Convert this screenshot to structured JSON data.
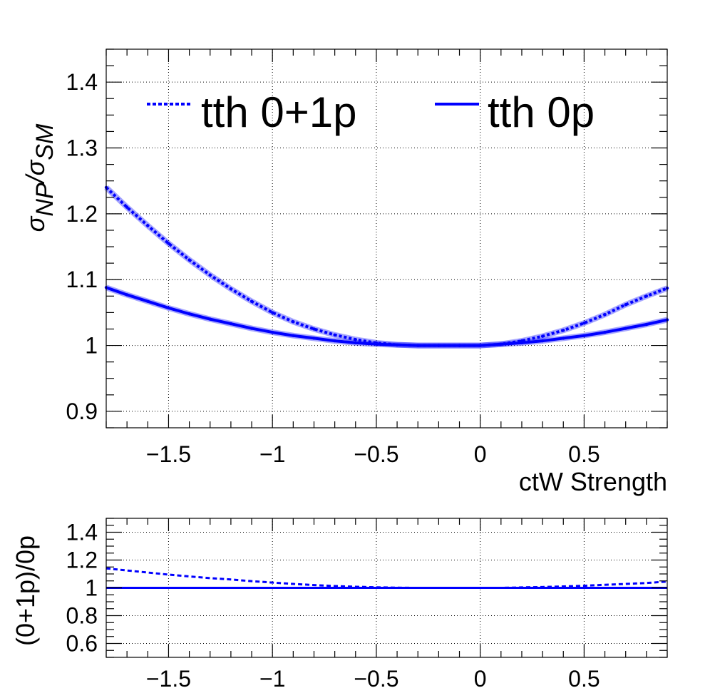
{
  "chart_data": [
    {
      "type": "line",
      "panel": "main",
      "xlabel": "ctW Strength",
      "ylabel_main": "σ",
      "ylabel_sub1": "NP",
      "ylabel_mid": "/σ",
      "ylabel_sub2": "SM",
      "xlim": [
        -1.8,
        0.9
      ],
      "ylim": [
        0.875,
        1.45
      ],
      "xticks": [
        -1.5,
        -1,
        -0.5,
        0,
        0.5
      ],
      "xtick_labels": [
        "−1.5",
        "−1",
        "−0.5",
        "0",
        "0.5"
      ],
      "yticks": [
        0.9,
        1.0,
        1.1,
        1.2,
        1.3,
        1.4
      ],
      "ytick_labels": [
        "0.9",
        "1",
        "1.1",
        "1.2",
        "1.3",
        "1.4"
      ],
      "grid": true,
      "legend_position": "top",
      "color": "#0000ff",
      "x": [
        -1.8,
        -1.7,
        -1.6,
        -1.5,
        -1.4,
        -1.3,
        -1.2,
        -1.1,
        -1.0,
        -0.9,
        -0.8,
        -0.7,
        -0.6,
        -0.5,
        -0.4,
        -0.3,
        -0.2,
        -0.1,
        0.0,
        0.1,
        0.2,
        0.3,
        0.4,
        0.5,
        0.6,
        0.7,
        0.8,
        0.9
      ],
      "series": [
        {
          "name": "tth 0+1p",
          "style": "dashed",
          "values": [
            1.24,
            1.21,
            1.182,
            1.155,
            1.13,
            1.107,
            1.086,
            1.067,
            1.05,
            1.036,
            1.025,
            1.016,
            1.009,
            1.004,
            1.001,
            1.0,
            1.0,
            1.0,
            1.0,
            1.002,
            1.007,
            1.014,
            1.023,
            1.034,
            1.047,
            1.062,
            1.075,
            1.087
          ]
        },
        {
          "name": "tth 0p",
          "style": "solid",
          "values": [
            1.088,
            1.077,
            1.067,
            1.057,
            1.048,
            1.04,
            1.033,
            1.026,
            1.02,
            1.015,
            1.011,
            1.007,
            1.004,
            1.002,
            1.001,
            1.0,
            1.0,
            1.0,
            1.0,
            1.002,
            1.004,
            1.007,
            1.011,
            1.015,
            1.02,
            1.026,
            1.032,
            1.039
          ]
        }
      ]
    },
    {
      "type": "line",
      "panel": "ratio",
      "ylabel": "(0+1p)/0p",
      "xlim": [
        -1.8,
        0.9
      ],
      "ylim": [
        0.5,
        1.5
      ],
      "xticks": [
        -1.5,
        -1,
        -0.5,
        0,
        0.5
      ],
      "xtick_labels": [
        "−1.5",
        "−1",
        "−0.5",
        "0",
        "0.5"
      ],
      "yticks": [
        0.6,
        0.8,
        1.0,
        1.2,
        1.4
      ],
      "ytick_labels": [
        "0.6",
        "0.8",
        "1",
        "1.2",
        "1.4"
      ],
      "grid": true,
      "color": "#0000ff",
      "x": [
        -1.8,
        -1.7,
        -1.6,
        -1.5,
        -1.4,
        -1.3,
        -1.2,
        -1.1,
        -1.0,
        -0.9,
        -0.8,
        -0.7,
        -0.6,
        -0.5,
        -0.4,
        -0.3,
        -0.2,
        -0.1,
        0.0,
        0.1,
        0.2,
        0.3,
        0.4,
        0.5,
        0.6,
        0.7,
        0.8,
        0.9
      ],
      "series": [
        {
          "style": "dashed",
          "values": [
            1.14,
            1.125,
            1.11,
            1.095,
            1.082,
            1.07,
            1.06,
            1.048,
            1.038,
            1.028,
            1.02,
            1.013,
            1.008,
            1.004,
            1.001,
            1.0,
            1.0,
            1.0,
            1.0,
            1.0,
            1.003,
            1.006,
            1.01,
            1.015,
            1.022,
            1.028,
            1.035,
            1.045
          ]
        },
        {
          "style": "solid",
          "values": [
            1.0,
            1.0,
            1.0,
            1.0,
            1.0,
            1.0,
            1.0,
            1.0,
            1.0,
            1.0,
            1.0,
            1.0,
            1.0,
            1.0,
            1.0,
            1.0,
            1.0,
            1.0,
            1.0,
            1.0,
            1.0,
            1.0,
            1.0,
            1.0,
            1.0,
            1.0,
            1.0,
            1.0
          ]
        }
      ]
    }
  ]
}
